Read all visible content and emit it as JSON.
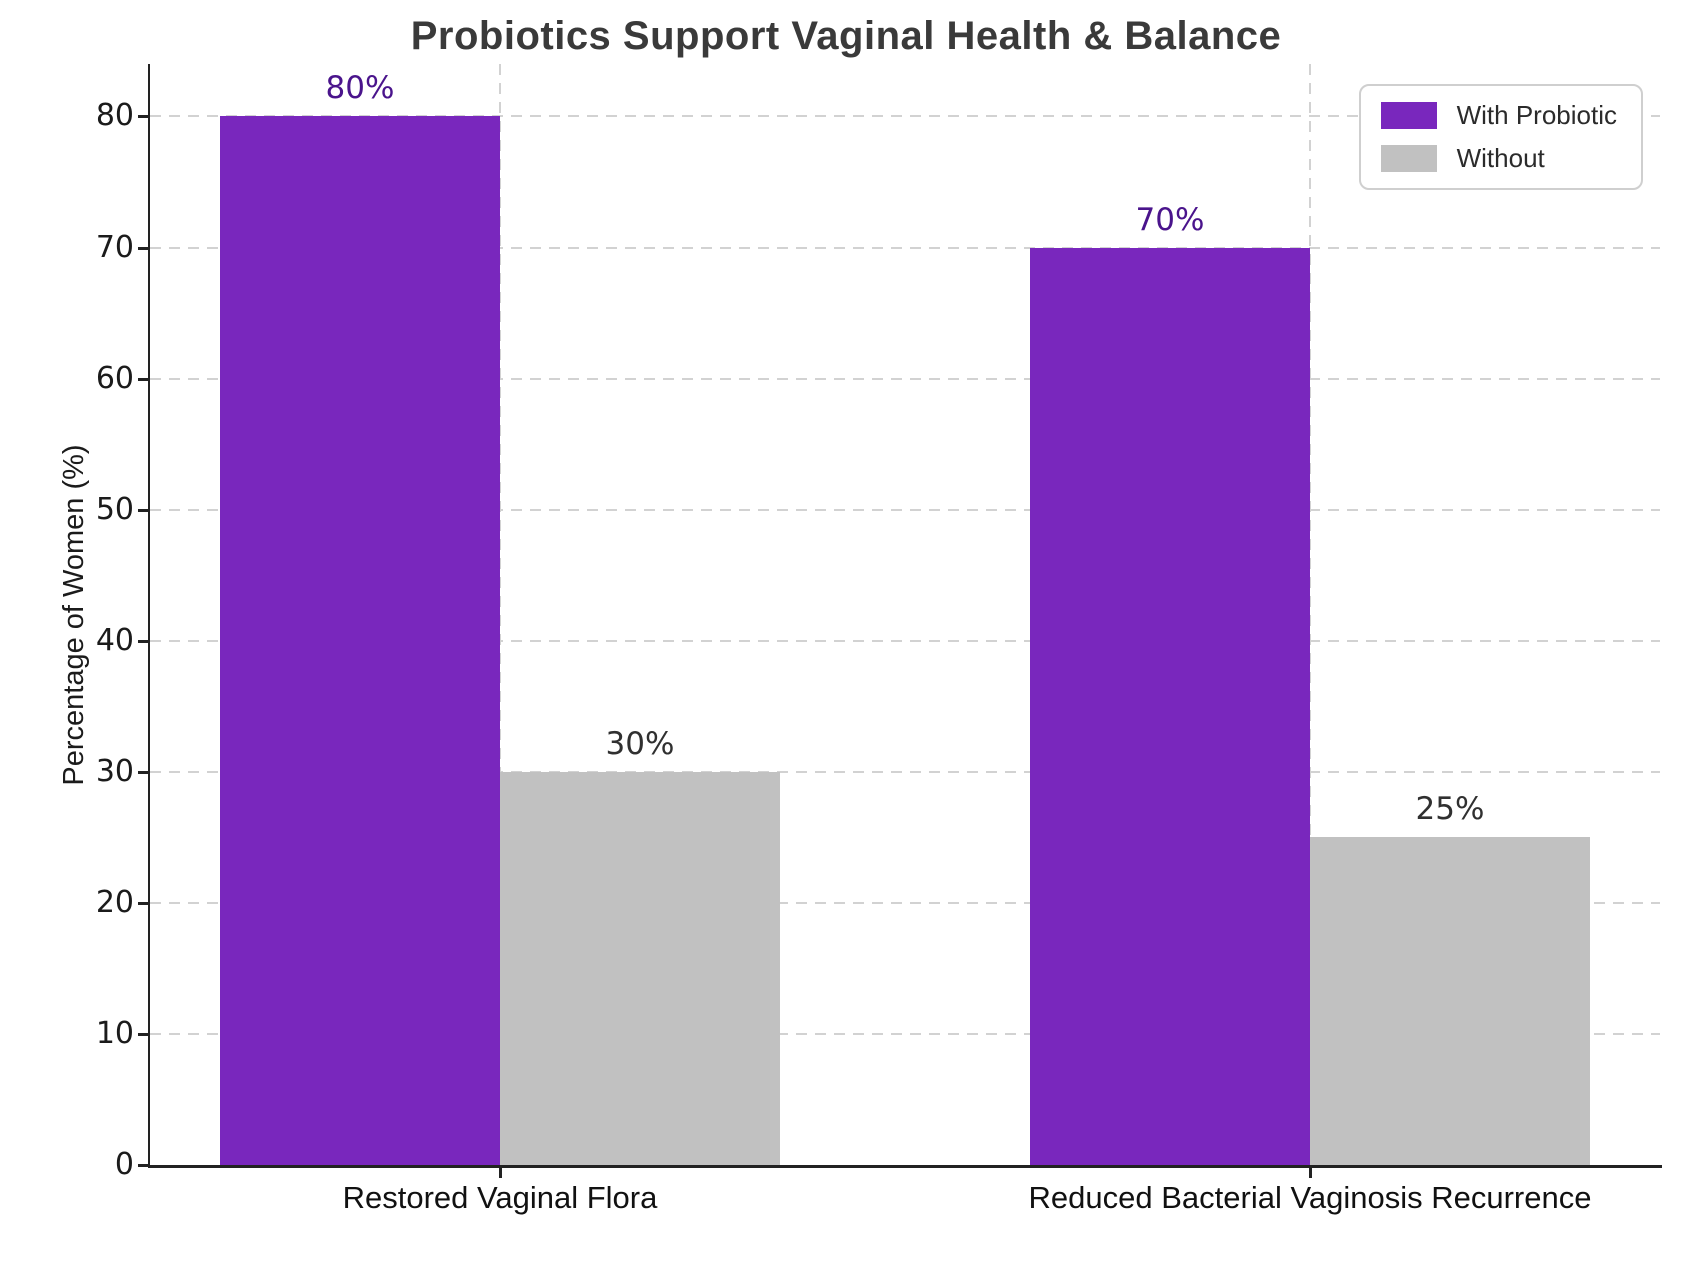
{
  "chart_data": {
    "type": "bar",
    "title": "Probiotics Support Vaginal Health & Balance",
    "categories": [
      "Restored Vaginal Flora",
      "Reduced Bacterial Vaginosis Recurrence"
    ],
    "series": [
      {
        "name": "With Probiotic",
        "values": [
          80,
          70
        ],
        "color": "#7927BD",
        "label_color": "#4A148C"
      },
      {
        "name": "Without",
        "values": [
          30,
          25
        ],
        "color": "#C1C1C1",
        "label_color": "#303030"
      }
    ],
    "value_label_suffix": "%",
    "xlabel": "",
    "ylabel": "Percentage of Women (%)",
    "ylim": [
      0,
      84
    ],
    "yticks": [
      0,
      10,
      20,
      30,
      40,
      50,
      60,
      70,
      80
    ],
    "grid": "dashed",
    "legend_position": "top-right"
  },
  "colors": {
    "background": "#ffffff",
    "title_text": "#3a3a3a",
    "axis_spine": "#222222",
    "tick_text": "#1b1b1b",
    "gridline": "#d2d2d2",
    "legend_border": "#cfcfcf"
  }
}
